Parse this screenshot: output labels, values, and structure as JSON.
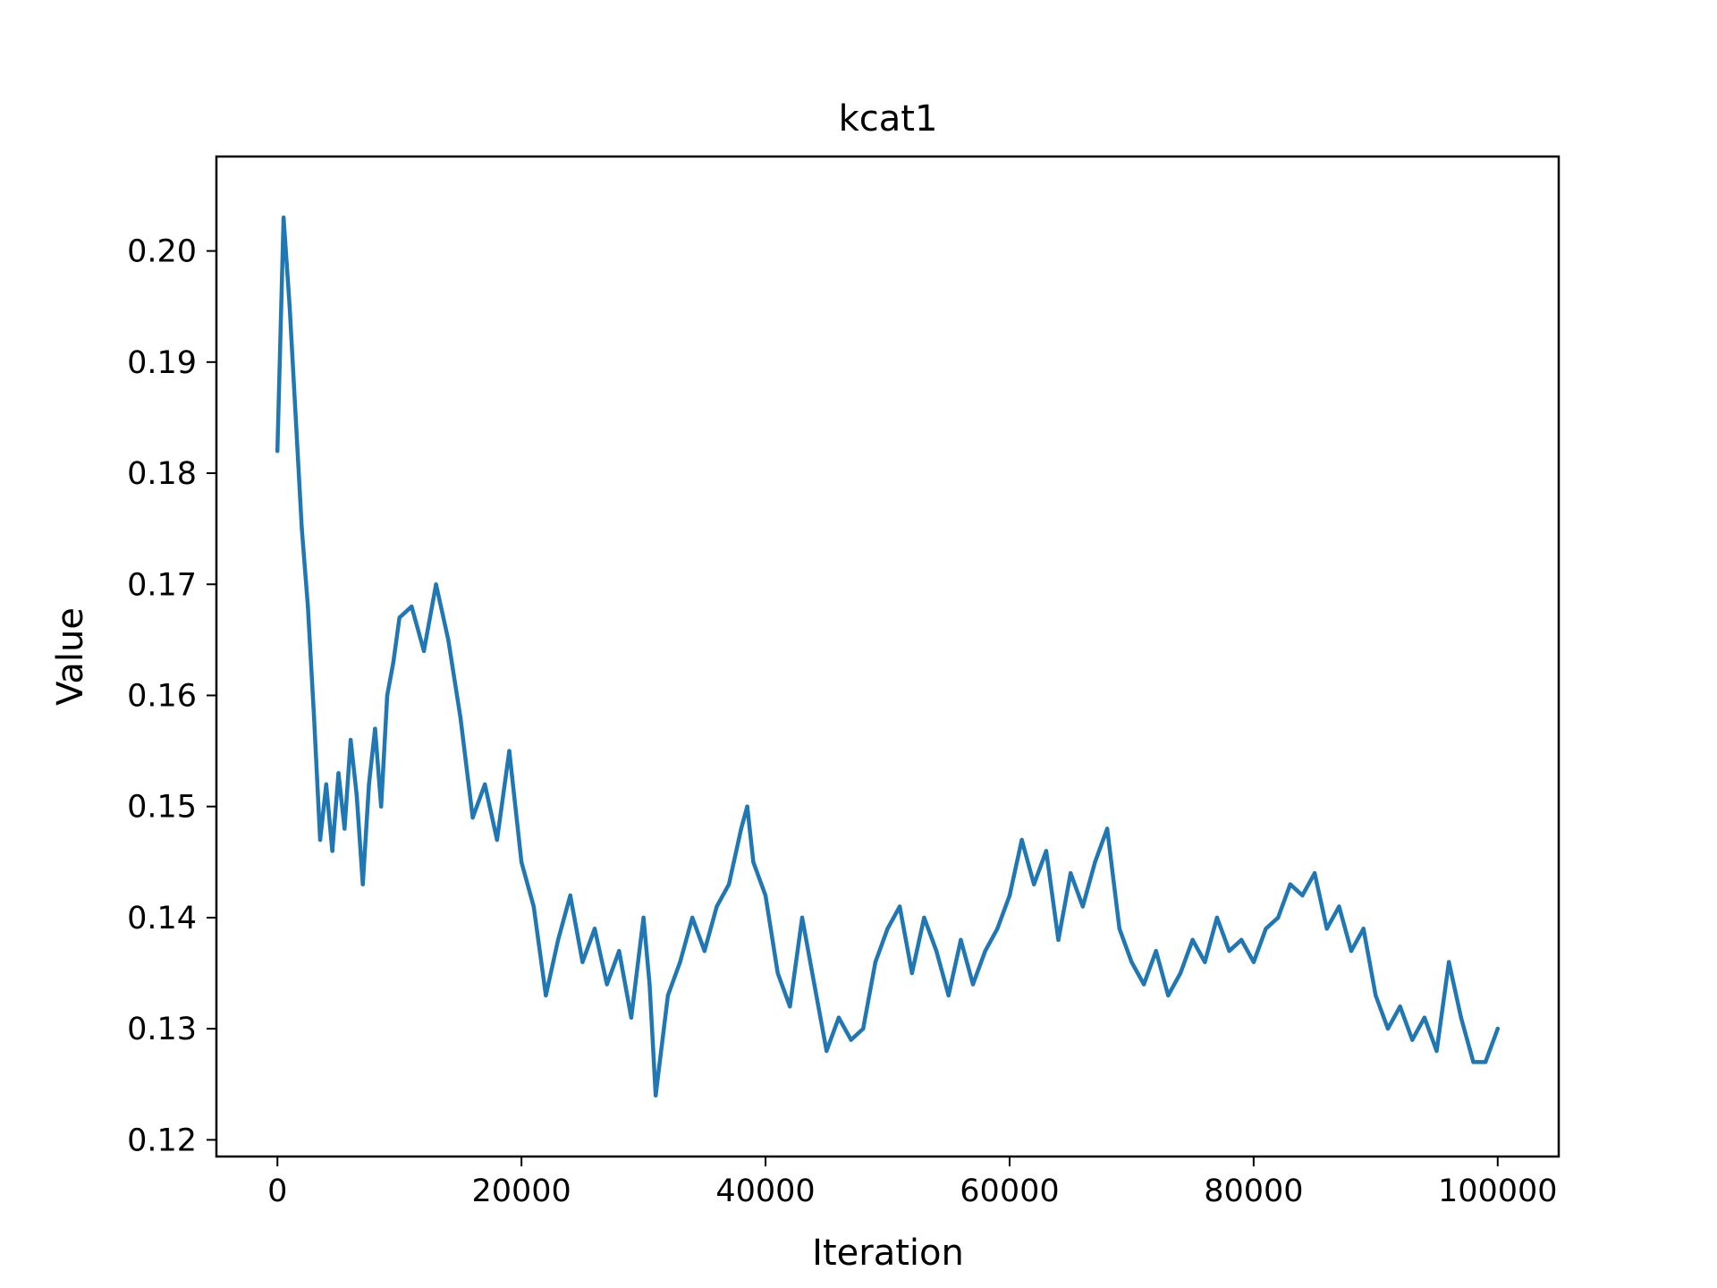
{
  "chart_data": {
    "type": "line",
    "title": "kcat1",
    "xlabel": "Iteration",
    "ylabel": "Value",
    "xlim": [
      -5000,
      105000
    ],
    "ylim": [
      0.1185,
      0.2085
    ],
    "xticks": [
      0,
      20000,
      40000,
      60000,
      80000,
      100000
    ],
    "xtick_labels": [
      "0",
      "20000",
      "40000",
      "60000",
      "80000",
      "100000"
    ],
    "yticks": [
      0.12,
      0.13,
      0.14,
      0.15,
      0.16,
      0.17,
      0.18,
      0.19,
      0.2
    ],
    "ytick_labels": [
      "0.12",
      "0.13",
      "0.14",
      "0.15",
      "0.16",
      "0.17",
      "0.18",
      "0.19",
      "0.20"
    ],
    "grid": false,
    "legend": "none",
    "series": [
      {
        "color": "#1f77b4",
        "x": [
          0,
          500,
          1000,
          1500,
          2000,
          2500,
          3000,
          3500,
          4000,
          4500,
          5000,
          5500,
          6000,
          6500,
          7000,
          7500,
          8000,
          8500,
          9000,
          9500,
          10000,
          11000,
          12000,
          13000,
          14000,
          15000,
          16000,
          17000,
          18000,
          19000,
          20000,
          21000,
          22000,
          23000,
          24000,
          25000,
          26000,
          27000,
          28000,
          29000,
          30000,
          30500,
          31000,
          32000,
          33000,
          34000,
          35000,
          36000,
          37000,
          38000,
          38500,
          39000,
          40000,
          41000,
          42000,
          43000,
          44000,
          45000,
          46000,
          47000,
          48000,
          49000,
          50000,
          51000,
          52000,
          53000,
          54000,
          55000,
          56000,
          57000,
          58000,
          59000,
          60000,
          61000,
          62000,
          63000,
          64000,
          65000,
          66000,
          67000,
          68000,
          69000,
          70000,
          71000,
          72000,
          73000,
          74000,
          75000,
          76000,
          77000,
          78000,
          79000,
          80000,
          81000,
          82000,
          83000,
          84000,
          85000,
          86000,
          87000,
          88000,
          89000,
          90000,
          91000,
          92000,
          93000,
          94000,
          95000,
          96000,
          97000,
          98000,
          99000,
          100000
        ],
        "y": [
          0.182,
          0.203,
          0.195,
          0.185,
          0.175,
          0.168,
          0.158,
          0.147,
          0.152,
          0.146,
          0.153,
          0.148,
          0.156,
          0.151,
          0.143,
          0.152,
          0.157,
          0.15,
          0.16,
          0.163,
          0.167,
          0.168,
          0.164,
          0.17,
          0.165,
          0.158,
          0.149,
          0.152,
          0.147,
          0.155,
          0.145,
          0.141,
          0.133,
          0.138,
          0.142,
          0.136,
          0.139,
          0.134,
          0.137,
          0.131,
          0.14,
          0.134,
          0.124,
          0.133,
          0.136,
          0.14,
          0.137,
          0.141,
          0.143,
          0.148,
          0.15,
          0.145,
          0.142,
          0.135,
          0.132,
          0.14,
          0.134,
          0.128,
          0.131,
          0.129,
          0.13,
          0.136,
          0.139,
          0.141,
          0.135,
          0.14,
          0.137,
          0.133,
          0.138,
          0.134,
          0.137,
          0.139,
          0.142,
          0.147,
          0.143,
          0.146,
          0.138,
          0.144,
          0.141,
          0.145,
          0.148,
          0.139,
          0.136,
          0.134,
          0.137,
          0.133,
          0.135,
          0.138,
          0.136,
          0.14,
          0.137,
          0.138,
          0.136,
          0.139,
          0.14,
          0.143,
          0.142,
          0.144,
          0.139,
          0.141,
          0.137,
          0.139,
          0.133,
          0.13,
          0.132,
          0.129,
          0.131,
          0.128,
          0.136,
          0.131,
          0.127,
          0.127,
          0.13
        ]
      }
    ]
  }
}
